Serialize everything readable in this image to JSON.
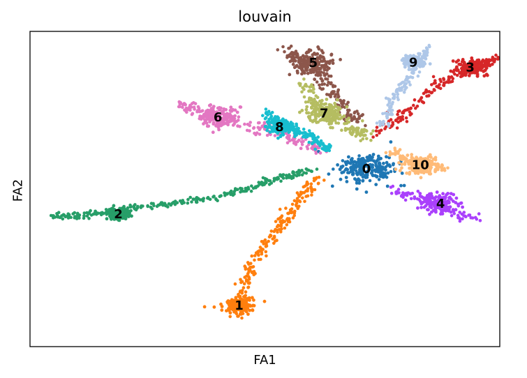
{
  "chart_data": {
    "type": "scatter",
    "title": "louvain",
    "xlabel": "FA1",
    "ylabel": "FA2",
    "xlim": [
      0,
      100
    ],
    "ylim": [
      0,
      100
    ],
    "grid": false,
    "xticks": false,
    "yticks": false,
    "colors": {
      "0": "#1f77b4",
      "1": "#ff7f0e",
      "2": "#279e68",
      "3": "#d62728",
      "4": "#aa40fc",
      "5": "#8c564b",
      "6": "#e377c2",
      "7": "#b5bd61",
      "8": "#17becf",
      "9": "#aec7e8",
      "10": "#ffbb78"
    },
    "clusters": [
      {
        "label": "0",
        "center": [
          71.6,
          56.4
        ],
        "path": [
          [
            67,
            58
          ],
          [
            72,
            56
          ],
          [
            76,
            56
          ]
        ],
        "spread": 2.6
      },
      {
        "label": "1",
        "center": [
          44.5,
          13.0
        ],
        "path": [
          [
            44.5,
            9
          ],
          [
            45,
            17
          ],
          [
            48,
            28
          ],
          [
            53,
            38
          ],
          [
            57,
            46
          ],
          [
            61,
            54
          ]
        ],
        "spread": 1.3
      },
      {
        "label": "2",
        "center": [
          18.8,
          42.0
        ],
        "path": [
          [
            5,
            41
          ],
          [
            12,
            42
          ],
          [
            22,
            44
          ],
          [
            34,
            46
          ],
          [
            44,
            49
          ],
          [
            52,
            53
          ],
          [
            60,
            56
          ]
        ],
        "spread": 0.9
      },
      {
        "label": "3",
        "center": [
          93.7,
          88.6
        ],
        "path": [
          [
            74,
            67
          ],
          [
            80,
            75
          ],
          [
            88,
            84
          ],
          [
            96,
            89
          ],
          [
            99,
            91
          ]
        ],
        "spread": 1.3
      },
      {
        "label": "4",
        "center": [
          87.4,
          45.4
        ],
        "path": [
          [
            77,
            50
          ],
          [
            85,
            46
          ],
          [
            95,
            40
          ]
        ],
        "spread": 1.6
      },
      {
        "label": "5",
        "center": [
          60.3,
          90.0
        ],
        "path": [
          [
            55,
            94
          ],
          [
            58,
            90
          ],
          [
            62,
            86
          ],
          [
            66,
            77
          ],
          [
            70,
            72
          ]
        ],
        "spread": 1.8
      },
      {
        "label": "6",
        "center": [
          40.0,
          72.8
        ],
        "path": [
          [
            32,
            77
          ],
          [
            38,
            73
          ],
          [
            48,
            70
          ],
          [
            55,
            67
          ],
          [
            62,
            62
          ]
        ],
        "spread": 1.6
      },
      {
        "label": "7",
        "center": [
          62.6,
          74.0
        ],
        "path": [
          [
            58,
            84
          ],
          [
            62,
            76
          ],
          [
            68,
            70
          ],
          [
            72,
            66
          ]
        ],
        "spread": 1.7
      },
      {
        "label": "8",
        "center": [
          53.1,
          69.7
        ],
        "path": [
          [
            50,
            74
          ],
          [
            55,
            70
          ],
          [
            60,
            66
          ],
          [
            64,
            62
          ]
        ],
        "spread": 1.2
      },
      {
        "label": "9",
        "center": [
          81.6,
          90.2
        ],
        "path": [
          [
            75,
            70
          ],
          [
            78,
            80
          ],
          [
            82,
            88
          ],
          [
            85,
            95
          ]
        ],
        "spread": 0.9
      },
      {
        "label": "10",
        "center": [
          83.1,
          57.6
        ],
        "path": [
          [
            77,
            62
          ],
          [
            82,
            58
          ],
          [
            88,
            57
          ]
        ],
        "spread": 1.4
      }
    ]
  }
}
